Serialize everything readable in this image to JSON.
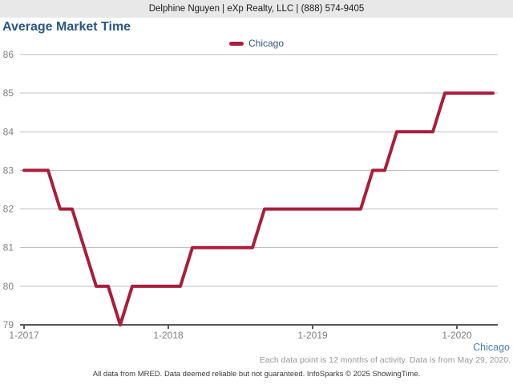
{
  "header": {
    "contact": "Delphine Nguyen | eXp Realty, LLC | (888) 574-9405"
  },
  "title": "Average Market Time",
  "legend": {
    "label": "Chicago",
    "color": "#A81E3C"
  },
  "footer": {
    "region": "Chicago",
    "note": "Each data point is 12 months of activity. Data is from May 29, 2020.",
    "credit": "All data from MRED. Data deemed reliable but not guaranteed. InfoSparks © 2025 ShowingTime."
  },
  "colors": {
    "line": "#A81E3C",
    "title_text": "#2A5783",
    "legend_text": "#33547A",
    "region_label_text": "#4E80B8",
    "header_background": "#E8E8E8",
    "grid": "#BFBFBF",
    "axis": "#595959",
    "axis_labels": "#7F7F7F"
  },
  "chart_data": {
    "type": "line",
    "title": "Average Market Time",
    "xlabel": "",
    "ylabel": "",
    "ylim": [
      79,
      86
    ],
    "yticks": [
      79,
      80,
      81,
      82,
      83,
      84,
      85,
      86
    ],
    "grid": true,
    "legend_position": "top-center",
    "x": [
      "1-2017",
      "2-2017",
      "3-2017",
      "4-2017",
      "5-2017",
      "6-2017",
      "7-2017",
      "8-2017",
      "9-2017",
      "10-2017",
      "11-2017",
      "12-2017",
      "1-2018",
      "2-2018",
      "3-2018",
      "4-2018",
      "5-2018",
      "6-2018",
      "7-2018",
      "8-2018",
      "9-2018",
      "10-2018",
      "11-2018",
      "12-2018",
      "1-2019",
      "2-2019",
      "3-2019",
      "4-2019",
      "5-2019",
      "6-2019",
      "7-2019",
      "8-2019",
      "9-2019",
      "10-2019",
      "11-2019",
      "12-2019",
      "1-2020",
      "2-2020",
      "3-2020",
      "4-2020"
    ],
    "x_ticks": [
      {
        "index": 0,
        "label": "1-2017"
      },
      {
        "index": 12,
        "label": "1-2018"
      },
      {
        "index": 24,
        "label": "1-2019"
      },
      {
        "index": 36,
        "label": "1-2020"
      }
    ],
    "series": [
      {
        "name": "Chicago",
        "color": "#A81E3C",
        "values": [
          83,
          83,
          83,
          82,
          82,
          81,
          80,
          80,
          79,
          80,
          80,
          80,
          80,
          80,
          81,
          81,
          81,
          81,
          81,
          81,
          82,
          82,
          82,
          82,
          82,
          82,
          82,
          82,
          82,
          83,
          83,
          84,
          84,
          84,
          84,
          85,
          85,
          85,
          85,
          85
        ]
      }
    ]
  }
}
